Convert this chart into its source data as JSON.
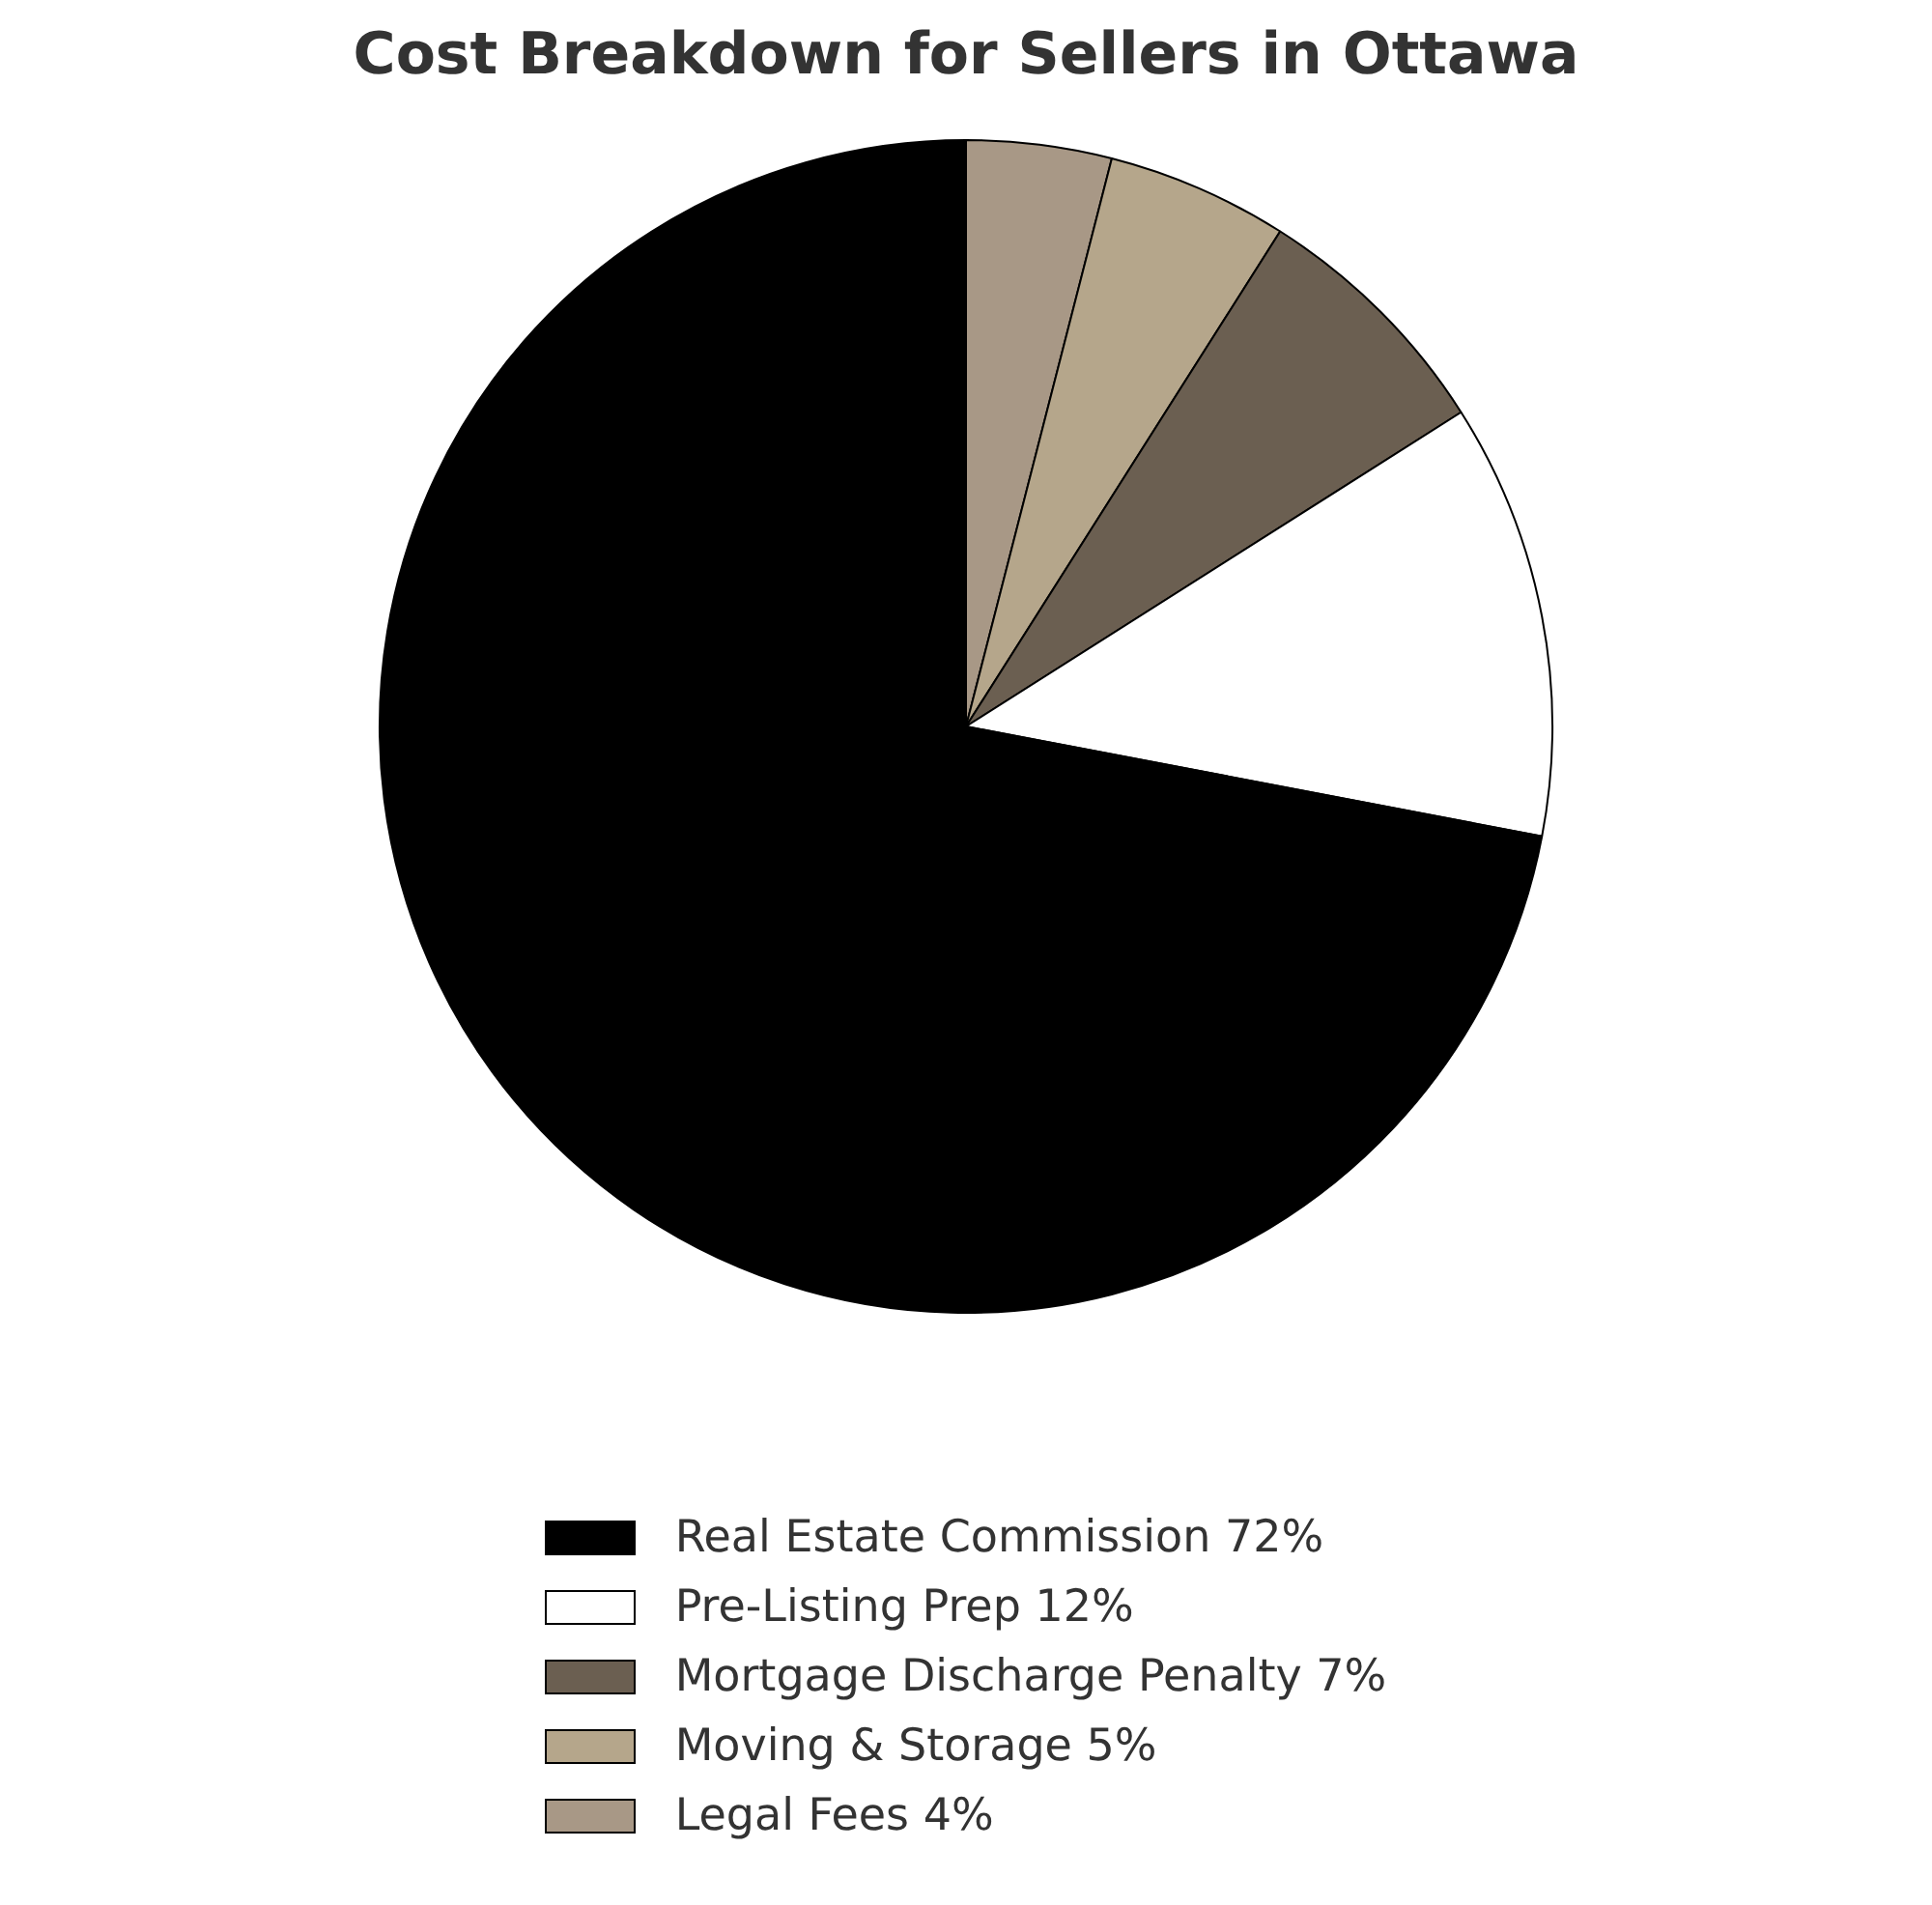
{
  "chart_data": {
    "type": "pie",
    "title": "Cost Breakdown for Sellers in Ottawa",
    "categories": [
      "Real Estate Commission 72%",
      "Pre-Listing Prep 12%",
      "Mortgage Discharge Penalty 7%",
      "Moving & Storage 5%",
      "Legal Fees 4%"
    ],
    "values": [
      72,
      12,
      7,
      5,
      4
    ],
    "colors": [
      "#000000",
      "#ffffff",
      "#6b5f51",
      "#b5a68b",
      "#a89886"
    ],
    "legend": "bottom"
  }
}
